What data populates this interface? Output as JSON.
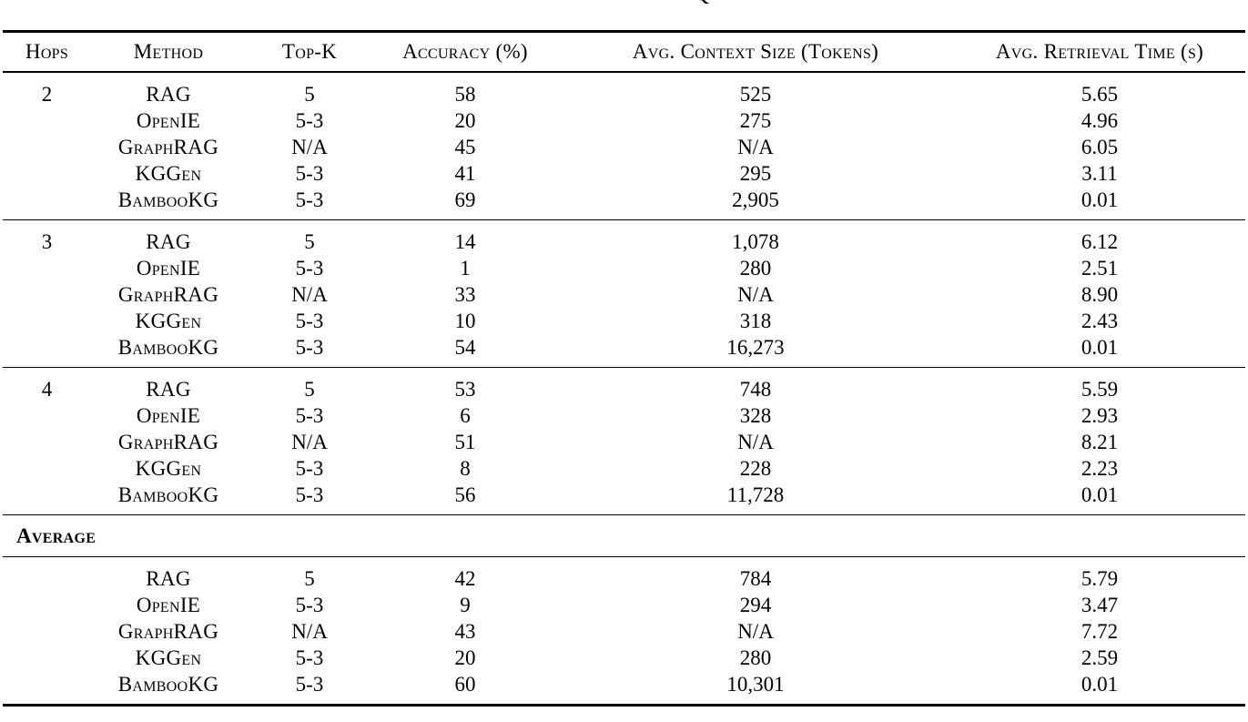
{
  "page": {
    "background": "#ffffff",
    "text_color": "#000000",
    "rule_color": "#000000"
  },
  "caption_fragment": {
    "text": "Q"
  },
  "table": {
    "columns": [
      "Hops",
      "Method",
      "Top-K",
      "Accuracy (%)",
      "Avg. Context Size (Tokens)",
      "Avg. Retrieval Time (s)"
    ],
    "column_keys": [
      "hops",
      "method",
      "top_k",
      "accuracy",
      "context_size",
      "retrieval_time"
    ],
    "groups": [
      {
        "hops": "2",
        "rows": [
          {
            "method": "RAG",
            "top_k": "5",
            "accuracy": "58",
            "context_size": "525",
            "retrieval_time": "5.65"
          },
          {
            "method": "OpenIE",
            "top_k": "5-3",
            "accuracy": "20",
            "context_size": "275",
            "retrieval_time": "4.96"
          },
          {
            "method": "GraphRAG",
            "top_k": "N/A",
            "accuracy": "45",
            "context_size": "N/A",
            "retrieval_time": "6.05"
          },
          {
            "method": "KGGen",
            "top_k": "5-3",
            "accuracy": "41",
            "context_size": "295",
            "retrieval_time": "3.11"
          },
          {
            "method": "BambooKG",
            "top_k": "5-3",
            "accuracy": "69",
            "context_size": "2,905",
            "retrieval_time": "0.01"
          }
        ]
      },
      {
        "hops": "3",
        "rows": [
          {
            "method": "RAG",
            "top_k": "5",
            "accuracy": "14",
            "context_size": "1,078",
            "retrieval_time": "6.12"
          },
          {
            "method": "OpenIE",
            "top_k": "5-3",
            "accuracy": "1",
            "context_size": "280",
            "retrieval_time": "2.51"
          },
          {
            "method": "GraphRAG",
            "top_k": "N/A",
            "accuracy": "33",
            "context_size": "N/A",
            "retrieval_time": "8.90"
          },
          {
            "method": "KGGen",
            "top_k": "5-3",
            "accuracy": "10",
            "context_size": "318",
            "retrieval_time": "2.43"
          },
          {
            "method": "BambooKG",
            "top_k": "5-3",
            "accuracy": "54",
            "context_size": "16,273",
            "retrieval_time": "0.01"
          }
        ]
      },
      {
        "hops": "4",
        "rows": [
          {
            "method": "RAG",
            "top_k": "5",
            "accuracy": "53",
            "context_size": "748",
            "retrieval_time": "5.59"
          },
          {
            "method": "OpenIE",
            "top_k": "5-3",
            "accuracy": "6",
            "context_size": "328",
            "retrieval_time": "2.93"
          },
          {
            "method": "GraphRAG",
            "top_k": "N/A",
            "accuracy": "51",
            "context_size": "N/A",
            "retrieval_time": "8.21"
          },
          {
            "method": "KGGen",
            "top_k": "5-3",
            "accuracy": "8",
            "context_size": "228",
            "retrieval_time": "2.23"
          },
          {
            "method": "BambooKG",
            "top_k": "5-3",
            "accuracy": "56",
            "context_size": "11,728",
            "retrieval_time": "0.01"
          }
        ]
      }
    ],
    "average_label": "Average",
    "average_rows": [
      {
        "method": "RAG",
        "top_k": "5",
        "accuracy": "42",
        "context_size": "784",
        "retrieval_time": "5.79"
      },
      {
        "method": "OpenIE",
        "top_k": "5-3",
        "accuracy": "9",
        "context_size": "294",
        "retrieval_time": "3.47"
      },
      {
        "method": "GraphRAG",
        "top_k": "N/A",
        "accuracy": "43",
        "context_size": "N/A",
        "retrieval_time": "7.72"
      },
      {
        "method": "KGGen",
        "top_k": "5-3",
        "accuracy": "20",
        "context_size": "280",
        "retrieval_time": "2.59"
      },
      {
        "method": "BambooKG",
        "top_k": "5-3",
        "accuracy": "60",
        "context_size": "10,301",
        "retrieval_time": "0.01"
      }
    ]
  },
  "chart_data": {
    "type": "table",
    "title": "",
    "columns": [
      "Hops",
      "Method",
      "Top-K",
      "Accuracy (%)",
      "Avg. Context Size (Tokens)",
      "Avg. Retrieval Time (s)"
    ],
    "rows": [
      [
        "2",
        "RAG",
        "5",
        "58",
        "525",
        "5.65"
      ],
      [
        "2",
        "OpenIE",
        "5-3",
        "20",
        "275",
        "4.96"
      ],
      [
        "2",
        "GraphRAG",
        "N/A",
        "45",
        "N/A",
        "6.05"
      ],
      [
        "2",
        "KGGen",
        "5-3",
        "41",
        "295",
        "3.11"
      ],
      [
        "2",
        "BambooKG",
        "5-3",
        "69",
        "2,905",
        "0.01"
      ],
      [
        "3",
        "RAG",
        "5",
        "14",
        "1,078",
        "6.12"
      ],
      [
        "3",
        "OpenIE",
        "5-3",
        "1",
        "280",
        "2.51"
      ],
      [
        "3",
        "GraphRAG",
        "N/A",
        "33",
        "N/A",
        "8.90"
      ],
      [
        "3",
        "KGGen",
        "5-3",
        "10",
        "318",
        "2.43"
      ],
      [
        "3",
        "BambooKG",
        "5-3",
        "54",
        "16,273",
        "0.01"
      ],
      [
        "4",
        "RAG",
        "5",
        "53",
        "748",
        "5.59"
      ],
      [
        "4",
        "OpenIE",
        "5-3",
        "6",
        "328",
        "2.93"
      ],
      [
        "4",
        "GraphRAG",
        "N/A",
        "51",
        "N/A",
        "8.21"
      ],
      [
        "4",
        "KGGen",
        "5-3",
        "8",
        "228",
        "2.23"
      ],
      [
        "4",
        "BambooKG",
        "5-3",
        "56",
        "11,728",
        "0.01"
      ],
      [
        "Average",
        "RAG",
        "5",
        "42",
        "784",
        "5.79"
      ],
      [
        "Average",
        "OpenIE",
        "5-3",
        "9",
        "294",
        "3.47"
      ],
      [
        "Average",
        "GraphRAG",
        "N/A",
        "43",
        "N/A",
        "7.72"
      ],
      [
        "Average",
        "KGGen",
        "5-3",
        "20",
        "280",
        "2.59"
      ],
      [
        "Average",
        "BambooKG",
        "5-3",
        "60",
        "10,301",
        "0.01"
      ]
    ]
  }
}
